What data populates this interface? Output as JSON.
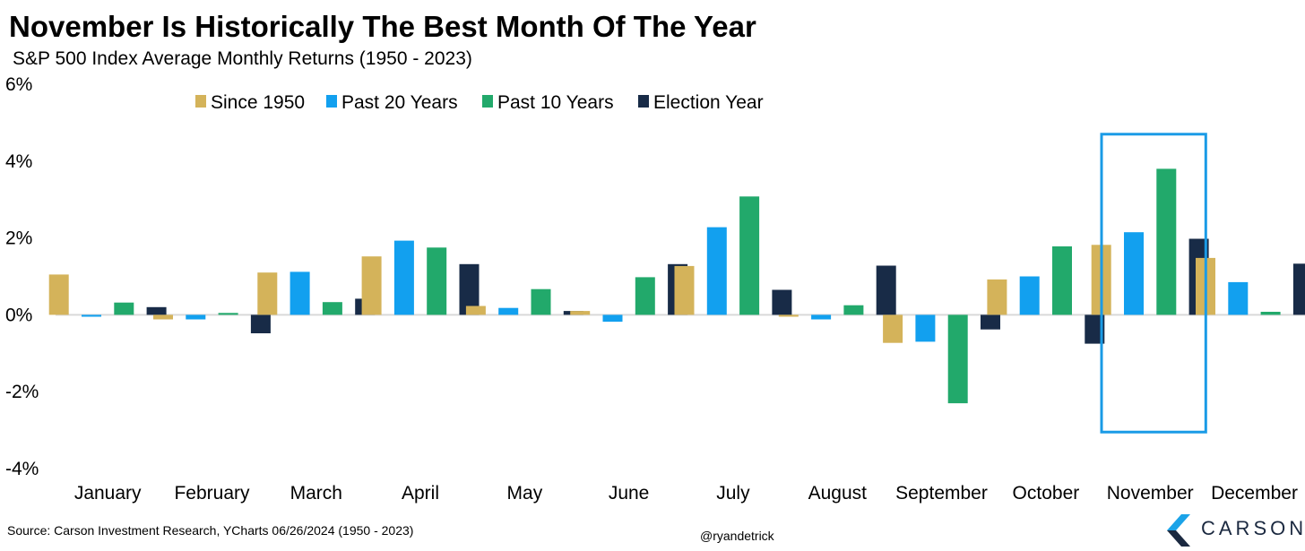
{
  "chart_data": {
    "type": "bar",
    "title": "November Is Historically The Best Month Of The Year",
    "subtitle": "S&P 500 Index Average Monthly Returns (1950 - 2023)",
    "categories": [
      "January",
      "February",
      "March",
      "April",
      "May",
      "June",
      "July",
      "August",
      "September",
      "October",
      "November",
      "December"
    ],
    "series": [
      {
        "name": "Since 1950",
        "color": "#d4b35a",
        "values": [
          1.05,
          -0.12,
          1.1,
          1.52,
          0.23,
          0.1,
          1.27,
          -0.05,
          -0.73,
          0.92,
          1.82,
          1.48
        ]
      },
      {
        "name": "Past 20 Years",
        "color": "#12a0ef",
        "values": [
          -0.05,
          -0.12,
          1.12,
          1.93,
          0.18,
          -0.18,
          2.28,
          -0.12,
          -0.7,
          1.0,
          2.15,
          0.85
        ]
      },
      {
        "name": "Past 10 Years",
        "color": "#22a96b",
        "values": [
          0.32,
          0.05,
          0.33,
          1.75,
          0.67,
          0.98,
          3.08,
          0.25,
          -2.3,
          1.78,
          3.8,
          0.08
        ]
      },
      {
        "name": "Election Year",
        "color": "#182b47",
        "values": [
          0.2,
          -0.48,
          0.42,
          1.32,
          0.1,
          1.32,
          0.65,
          1.28,
          -0.38,
          -0.75,
          1.98,
          1.33
        ]
      }
    ],
    "ylim": [
      -4,
      6
    ],
    "yticks": [
      "-4%",
      "-2%",
      "0%",
      "2%",
      "4%",
      "6%"
    ],
    "ytick_values": [
      -4,
      -2,
      0,
      2,
      4,
      6
    ],
    "grid": false,
    "legend_position": "top-center",
    "highlight_category": "November",
    "highlight_color": "#1a9be6",
    "source": "Source: Carson Investment Research, YCharts 06/26/2024 (1950 - 2023)",
    "handle": "@ryandetrick"
  },
  "brand": {
    "name": "CARSON",
    "icon": "carson-chevron-logo-icon",
    "colors": [
      "#1b2940",
      "#1ba3e8"
    ]
  }
}
